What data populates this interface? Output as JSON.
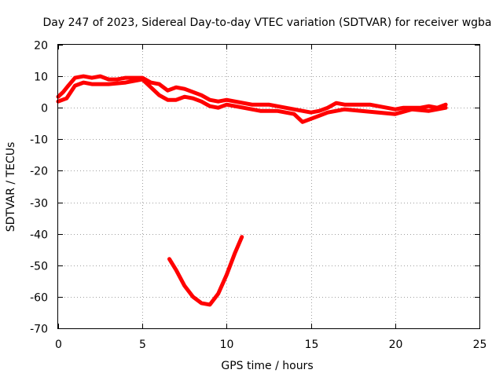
{
  "chart_data": {
    "type": "line",
    "title": "Day 247 of 2023, Sidereal Day-to-day VTEC variation (SDTVAR) for receiver wgba",
    "xlabel": "GPS time / hours",
    "ylabel": "SDTVAR / TECUs",
    "xlim": [
      0,
      25
    ],
    "ylim": [
      -70,
      20
    ],
    "xticks": [
      0,
      5,
      10,
      15,
      20,
      25
    ],
    "yticks": [
      20,
      10,
      0,
      -10,
      -20,
      -30,
      -40,
      -50,
      -60,
      -70
    ],
    "grid": true,
    "series_color": "#ff0000",
    "series": [
      {
        "name": "main-band",
        "points": [
          [
            0.0,
            3.5
          ],
          [
            0.3,
            5.0
          ],
          [
            0.6,
            7.0
          ],
          [
            1.0,
            9.5
          ],
          [
            1.5,
            10.0
          ],
          [
            2.0,
            9.5
          ],
          [
            2.5,
            10.0
          ],
          [
            3.0,
            9.0
          ],
          [
            3.5,
            9.0
          ],
          [
            4.0,
            9.5
          ],
          [
            4.5,
            9.5
          ],
          [
            5.0,
            9.5
          ],
          [
            5.5,
            8.0
          ],
          [
            6.0,
            7.5
          ],
          [
            6.5,
            5.5
          ],
          [
            7.0,
            6.5
          ],
          [
            7.5,
            6.0
          ],
          [
            8.0,
            5.0
          ],
          [
            8.5,
            4.0
          ],
          [
            9.0,
            2.5
          ],
          [
            9.5,
            2.0
          ],
          [
            10.0,
            2.5
          ],
          [
            10.5,
            2.0
          ],
          [
            11.0,
            1.5
          ],
          [
            11.5,
            1.0
          ],
          [
            12.0,
            1.0
          ],
          [
            12.5,
            1.0
          ],
          [
            13.0,
            0.5
          ],
          [
            13.5,
            0.0
          ],
          [
            14.0,
            -0.5
          ],
          [
            14.5,
            -1.0
          ],
          [
            15.0,
            -1.5
          ],
          [
            15.5,
            -1.0
          ],
          [
            16.0,
            0.0
          ],
          [
            16.5,
            1.5
          ],
          [
            17.0,
            1.0
          ],
          [
            17.5,
            1.0
          ],
          [
            18.0,
            1.0
          ],
          [
            18.5,
            1.0
          ],
          [
            19.0,
            0.5
          ],
          [
            19.5,
            0.0
          ],
          [
            20.0,
            -0.5
          ],
          [
            20.5,
            0.0
          ],
          [
            21.0,
            0.0
          ],
          [
            21.5,
            0.0
          ],
          [
            22.0,
            0.5
          ],
          [
            22.5,
            0.0
          ],
          [
            23.0,
            1.0
          ]
        ]
      },
      {
        "name": "lower-band",
        "points": [
          [
            0.0,
            2.0
          ],
          [
            0.5,
            3.0
          ],
          [
            1.0,
            7.0
          ],
          [
            1.5,
            8.0
          ],
          [
            2.0,
            7.5
          ],
          [
            3.0,
            7.5
          ],
          [
            4.0,
            8.0
          ],
          [
            5.0,
            9.0
          ],
          [
            6.0,
            4.0
          ],
          [
            6.5,
            2.5
          ],
          [
            7.0,
            2.5
          ],
          [
            7.5,
            3.5
          ],
          [
            8.0,
            3.0
          ],
          [
            8.5,
            2.0
          ],
          [
            9.0,
            0.5
          ],
          [
            9.5,
            0.0
          ],
          [
            10.0,
            1.0
          ],
          [
            11.0,
            0.0
          ],
          [
            12.0,
            -1.0
          ],
          [
            13.0,
            -1.0
          ],
          [
            14.0,
            -2.0
          ],
          [
            14.5,
            -4.5
          ],
          [
            15.0,
            -3.5
          ],
          [
            15.5,
            -2.5
          ],
          [
            16.0,
            -1.5
          ],
          [
            17.0,
            -0.5
          ],
          [
            18.0,
            -1.0
          ],
          [
            19.0,
            -1.5
          ],
          [
            20.0,
            -2.0
          ],
          [
            21.0,
            -0.5
          ],
          [
            22.0,
            -1.0
          ],
          [
            23.0,
            0.0
          ]
        ]
      },
      {
        "name": "u-curve",
        "points": [
          [
            6.6,
            -48.0
          ],
          [
            7.0,
            -51.5
          ],
          [
            7.5,
            -56.5
          ],
          [
            8.0,
            -60.0
          ],
          [
            8.5,
            -62.0
          ],
          [
            9.0,
            -62.5
          ],
          [
            9.5,
            -59.0
          ],
          [
            10.0,
            -53.0
          ],
          [
            10.5,
            -46.0
          ],
          [
            10.9,
            -41.0
          ]
        ]
      }
    ]
  }
}
